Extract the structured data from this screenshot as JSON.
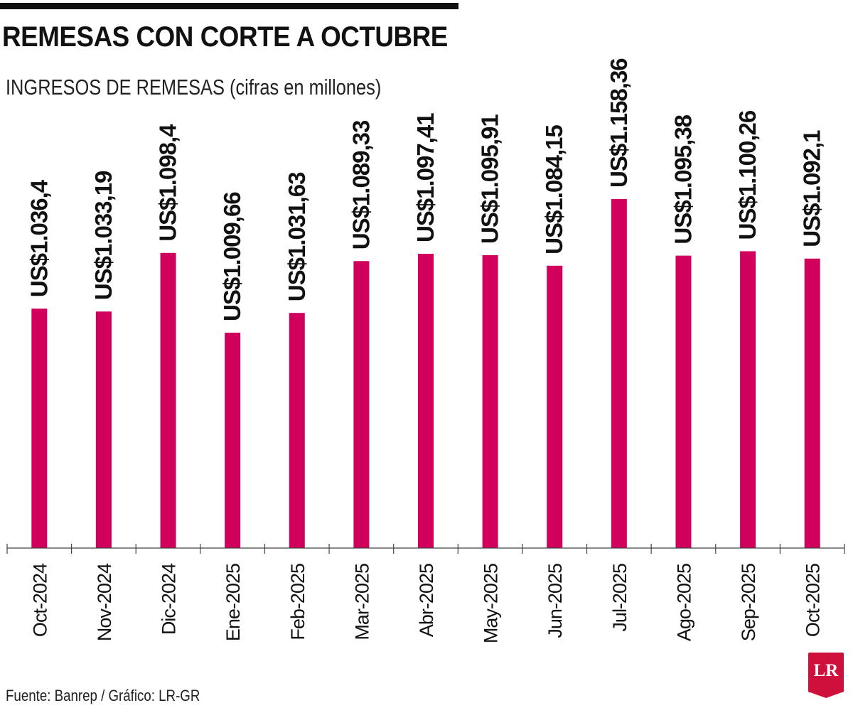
{
  "header": {
    "title": "REMESAS CON CORTE A OCTUBRE",
    "subtitle": "INGRESOS DE REMESAS (cifras en millones)"
  },
  "footer": {
    "source": "Fuente: Banrep / Gráfico: LR-GR",
    "logo_text": "LR"
  },
  "colors": {
    "bar": "#d0005c",
    "logo": "#d0103c"
  },
  "chart_data": {
    "type": "bar",
    "title": "REMESAS CON CORTE A OCTUBRE",
    "subtitle": "INGRESOS DE REMESAS (cifras en millones)",
    "categories": [
      "Oct-2024",
      "Nov-2024",
      "Dic-2024",
      "Ene-2025",
      "Feb-2025",
      "Mar-2025",
      "Abr-2025",
      "May-2025",
      "Jun-2025",
      "Jul-2025",
      "Ago-2025",
      "Sep-2025",
      "Oct-2025"
    ],
    "values": [
      1036.4,
      1033.19,
      1098.4,
      1009.66,
      1031.63,
      1089.33,
      1097.41,
      1095.91,
      1084.15,
      1158.36,
      1095.38,
      1100.26,
      1092.1
    ],
    "data_labels": [
      "US$1.036,4",
      "US$1.033,19",
      "US$1.098,4",
      "US$1.009,66",
      "US$1.031,63",
      "US$1.089,33",
      "US$1.097,41",
      "US$1.095,91",
      "US$1.084,15",
      "US$1.158,36",
      "US$1.095,38",
      "US$1.100,26",
      "US$1.092,1"
    ],
    "xlabel": "",
    "ylabel": "",
    "ylim": [
      770,
      1158.36
    ],
    "grid": false,
    "legend": "none",
    "x_tick_rotation": "vertical",
    "data_label_orientation": "vertical"
  }
}
